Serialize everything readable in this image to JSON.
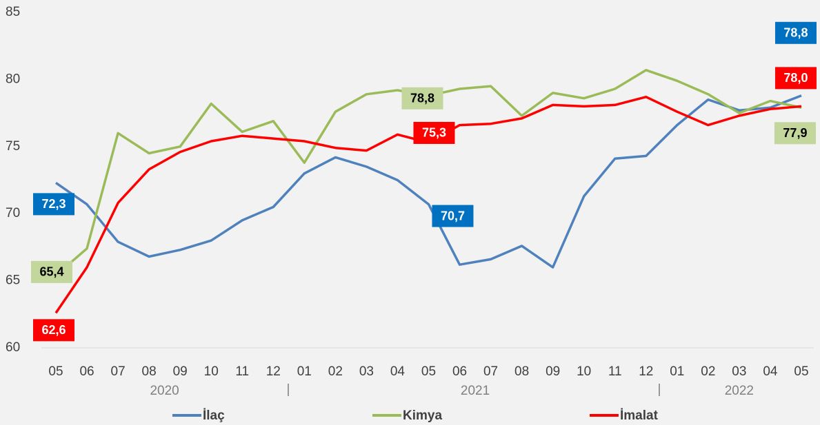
{
  "chart_data": {
    "type": "line",
    "categories": [
      "05",
      "06",
      "07",
      "08",
      "09",
      "10",
      "11",
      "12",
      "01",
      "02",
      "03",
      "04",
      "05",
      "06",
      "07",
      "08",
      "09",
      "10",
      "11",
      "12",
      "01",
      "02",
      "03",
      "04",
      "05"
    ],
    "x_groups": [
      {
        "label": "2020",
        "from": 0,
        "to": 7
      },
      {
        "label": "2021",
        "from": 8,
        "to": 19
      },
      {
        "label": "2022",
        "from": 20,
        "to": 24
      }
    ],
    "ylim": [
      60,
      85
    ],
    "yticks": [
      60,
      65,
      70,
      75,
      80,
      85
    ],
    "grid": false,
    "legend": "bottom",
    "series": [
      {
        "name": "İlaç",
        "color": "#4f81bd",
        "label_color": "#0070c0",
        "label_text_color": "#ffffff",
        "values": [
          72.3,
          70.7,
          67.9,
          66.8,
          67.3,
          68.0,
          69.5,
          70.5,
          73.0,
          74.2,
          73.5,
          72.5,
          70.7,
          66.2,
          66.6,
          67.6,
          66.0,
          71.3,
          74.1,
          74.3,
          76.6,
          78.5,
          77.7,
          77.9,
          78.8
        ],
        "value_labels": [
          "72,3",
          null,
          null,
          null,
          null,
          null,
          null,
          null,
          null,
          null,
          null,
          null,
          "70,7",
          null,
          null,
          null,
          null,
          null,
          null,
          null,
          null,
          null,
          null,
          null,
          "78,8"
        ]
      },
      {
        "name": "Kimya",
        "color": "#9bbb59",
        "label_color": "#c3d69b",
        "label_text_color": "#000000",
        "values": [
          65.4,
          67.4,
          76.0,
          74.5,
          75.0,
          78.2,
          76.1,
          76.9,
          73.8,
          77.6,
          78.9,
          79.2,
          78.8,
          79.3,
          79.5,
          77.3,
          79.0,
          78.6,
          79.3,
          80.7,
          79.9,
          78.9,
          77.5,
          78.4,
          77.9
        ],
        "value_labels": [
          "65,4",
          null,
          null,
          null,
          null,
          null,
          null,
          null,
          null,
          null,
          null,
          null,
          "78,8",
          null,
          null,
          null,
          null,
          null,
          null,
          null,
          null,
          null,
          null,
          null,
          "77,9"
        ]
      },
      {
        "name": "İmalat",
        "color": "#ff0000",
        "label_color": "#ff0000",
        "label_text_color": "#ffffff",
        "values": [
          62.6,
          66.0,
          70.8,
          73.3,
          74.6,
          75.4,
          75.8,
          75.6,
          75.4,
          74.9,
          74.7,
          75.9,
          75.3,
          76.6,
          76.7,
          77.1,
          78.1,
          78.0,
          78.1,
          78.7,
          77.6,
          76.6,
          77.3,
          77.8,
          78.0
        ],
        "value_labels": [
          "62,6",
          null,
          null,
          null,
          null,
          null,
          null,
          null,
          null,
          null,
          null,
          null,
          "75,3",
          null,
          null,
          null,
          null,
          null,
          null,
          null,
          null,
          null,
          null,
          null,
          "78,0"
        ]
      }
    ]
  }
}
